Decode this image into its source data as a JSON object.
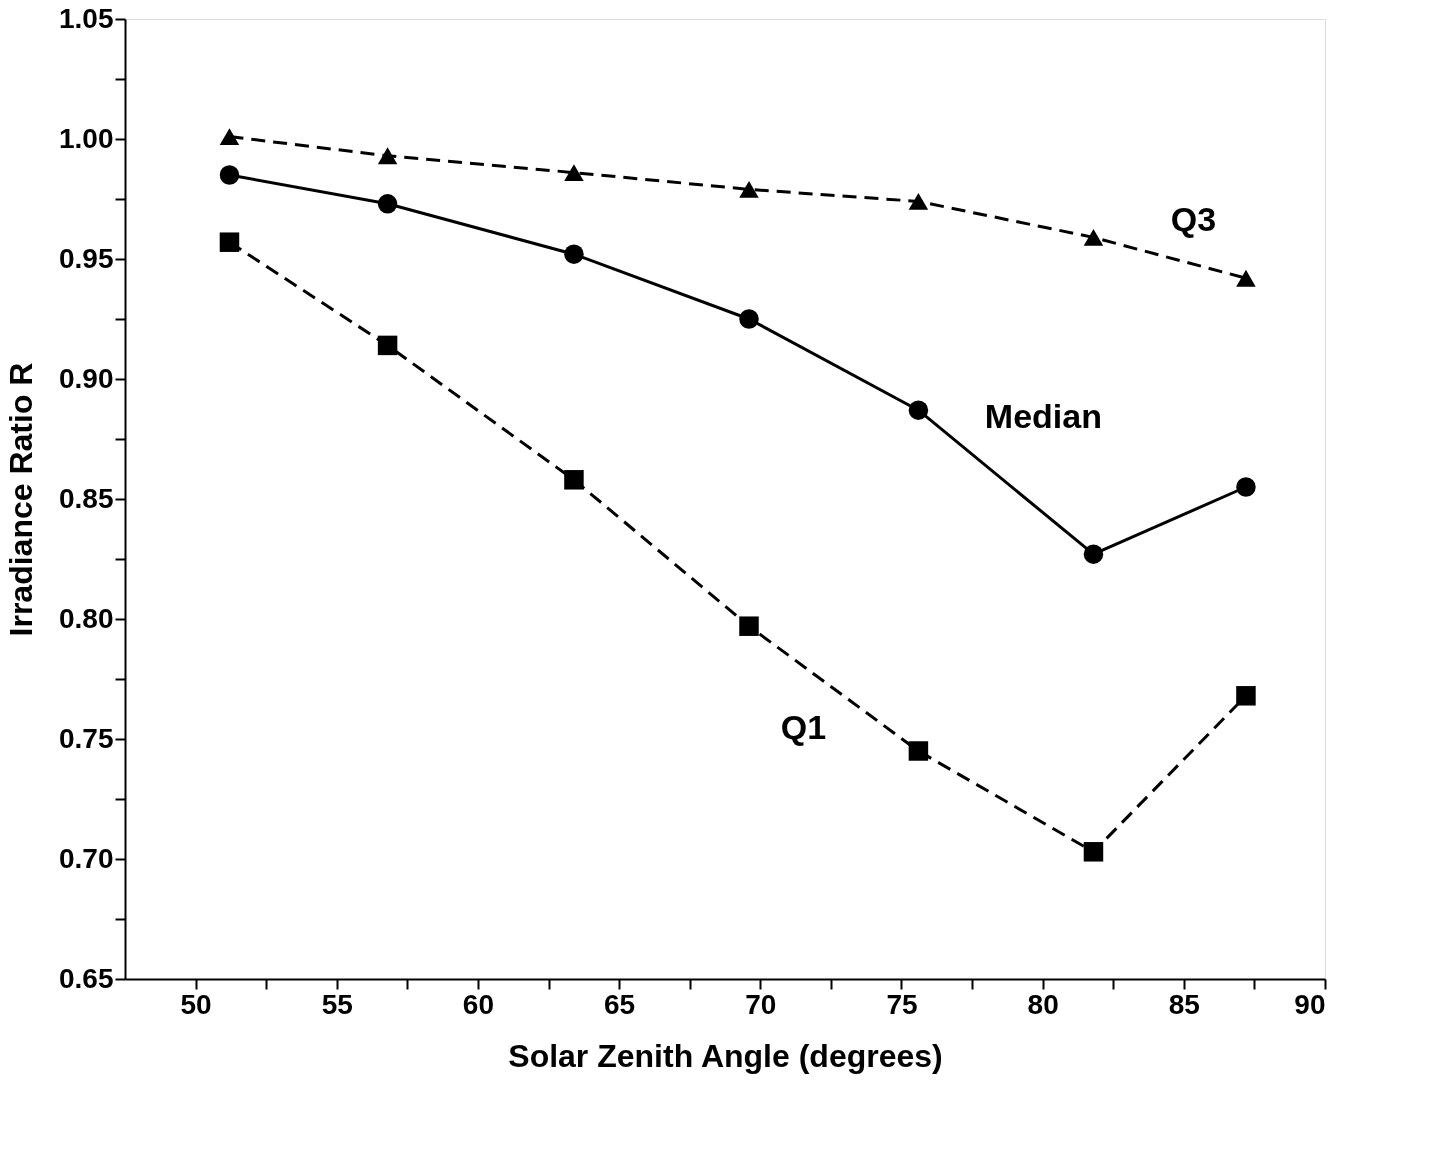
{
  "chart_data": {
    "type": "line",
    "xlabel": "Solar Zenith Angle (degrees)",
    "ylabel": "Irradiance Ratio R",
    "x": [
      51.2,
      56.8,
      63.4,
      69.6,
      75.6,
      81.8,
      87.2
    ],
    "series": [
      {
        "name": "Q3",
        "color": "#000000",
        "marker": "triangle",
        "line_style": "dashed",
        "values": [
          1.001,
          0.993,
          0.986,
          0.979,
          0.974,
          0.959,
          0.942
        ]
      },
      {
        "name": "Median",
        "color": "#000000",
        "marker": "circle",
        "line_style": "solid",
        "values": [
          0.985,
          0.973,
          0.952,
          0.925,
          0.887,
          0.827,
          0.855
        ]
      },
      {
        "name": "Q1",
        "color": "#000000",
        "marker": "square",
        "line_style": "dashed",
        "values": [
          0.957,
          0.914,
          0.858,
          0.797,
          0.745,
          0.703,
          0.768
        ]
      }
    ],
    "xlim": [
      47.5,
      90
    ],
    "xticks": [
      50,
      {
        "value": 52.5,
        "label": null
      },
      55,
      {
        "value": 57.5,
        "label": null
      },
      60,
      {
        "value": 62.5,
        "label": null
      },
      65,
      {
        "value": 67.5,
        "label": null
      },
      70,
      {
        "value": 72.5,
        "label": null
      },
      75,
      {
        "value": 77.5,
        "label": null
      },
      80,
      {
        "value": 82.5,
        "label": null
      },
      85,
      {
        "value": 87.5,
        "label": null
      },
      90
    ],
    "ylim": [
      0.65,
      1.05
    ],
    "yticks": [
      0.65,
      {
        "value": 0.675,
        "label": null
      },
      {
        "value": 0.7,
        "label": "0.70"
      },
      {
        "value": 0.725,
        "label": null
      },
      0.75,
      {
        "value": 0.775,
        "label": null
      },
      {
        "value": 0.8,
        "label": "0.80"
      },
      {
        "value": 0.825,
        "label": null
      },
      0.85,
      {
        "value": 0.875,
        "label": null
      },
      {
        "value": 0.9,
        "label": "0.90"
      },
      {
        "value": 0.925,
        "label": null
      },
      0.95,
      {
        "value": 0.975,
        "label": null
      },
      {
        "value": 1.0,
        "label": "1.00"
      },
      {
        "value": 1.025,
        "label": null
      },
      1.05
    ],
    "grid": false
  }
}
